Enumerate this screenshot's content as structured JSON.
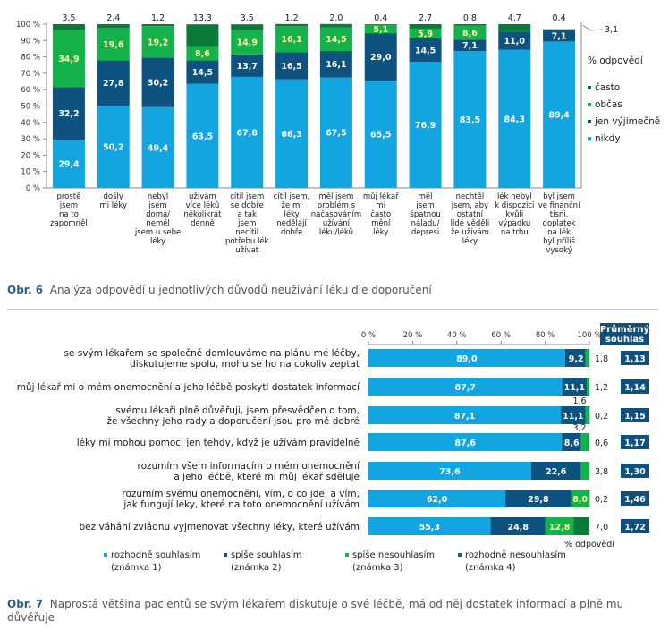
{
  "colors": {
    "very_light": "#12a5e0",
    "dark_blue": "#0e527f",
    "green": "#15b24b",
    "dark_green": "#0a7a3a",
    "axis": "#888888",
    "score_box": "#124f7a"
  },
  "figure6": {
    "caption_num": "Obr. 6",
    "caption": "Analýza odpovědí u jednotlivých důvodů neužívání léku dle doporučení",
    "unit_label": "% odpovědí",
    "extra_label": "3,1"
  },
  "figure7": {
    "caption_num": "Obr. 7",
    "caption": "Naprostá většina pacientů se svým lékařem diskutuje o své léčbě, má od něj dostatek informací a plně mu důvěřuje",
    "score_header": "Průměrný souhlas",
    "unit_label": "% odpovědí"
  },
  "chart_data": [
    {
      "type": "bar",
      "stacked": true,
      "orientation": "vertical",
      "yticks": [
        "0 %",
        "10 %",
        "20 %",
        "30 %",
        "40 %",
        "50 %",
        "60 %",
        "70 %",
        "80 %",
        "90 %",
        "100 %"
      ],
      "ylim": [
        0,
        100
      ],
      "categories": [
        [
          "prostě",
          "jsem",
          "na to",
          "zapomněl"
        ],
        [
          "došly",
          "mi léky"
        ],
        [
          "nebyl",
          "jsem",
          "doma/",
          "neměl",
          "jsem u sebe",
          "léky"
        ],
        [
          "užívám",
          "více léků",
          "několikrát",
          "denně"
        ],
        [
          "cítil jsem",
          "se dobře",
          "a tak",
          "jsem",
          "necítil",
          "potřebu lék",
          "užívat"
        ],
        [
          "cítil jsem,",
          "že mi",
          "léky",
          "nedělají",
          "dobře"
        ],
        [
          "měl jsem",
          "problém s",
          "načasováním",
          "užívání",
          "léku/léků"
        ],
        [
          "můj lékař",
          "mi",
          "často",
          "mění",
          "léky"
        ],
        [
          "měl",
          "jsem",
          "špatnou",
          "náladu/",
          "depresi"
        ],
        [
          "nechtěl",
          "jsem, aby",
          "ostatní",
          "lidé věděli",
          "že užívám",
          "léky"
        ],
        [
          "lék nebyl",
          "k dispozici",
          "kvůli",
          "výpadku",
          "na trhu"
        ],
        [
          "byl jsem",
          "ve finanční",
          "tísni,",
          "doplatek",
          "na lék",
          "byl příliš",
          "vysoký"
        ]
      ],
      "series": [
        {
          "name": "nikdy",
          "values": [
            29.4,
            50.2,
            49.4,
            63.5,
            67.8,
            66.3,
            67.5,
            65.5,
            76.9,
            83.5,
            84.3,
            89.4
          ],
          "labels": [
            "29,4",
            "50,2",
            "49,4",
            "63,5",
            "67,8",
            "66,3",
            "67,5",
            "65,5",
            "76,9",
            "83,5",
            "84,3",
            "89,4"
          ]
        },
        {
          "name": "jen výjimečně",
          "values": [
            32.2,
            27.8,
            30.2,
            14.5,
            13.7,
            16.5,
            16.1,
            29.0,
            14.5,
            7.1,
            11.0,
            7.1
          ],
          "labels": [
            "32,2",
            "27,8",
            "30,2",
            "14,5",
            "13,7",
            "16,5",
            "16,1",
            "29,0",
            "14,5",
            "7,1",
            "11,0",
            "7,1"
          ]
        },
        {
          "name": "občas",
          "values": [
            34.9,
            19.6,
            19.2,
            8.6,
            14.9,
            16.1,
            14.5,
            5.1,
            5.9,
            8.6,
            0.0,
            0.0
          ],
          "labels": [
            "34,9",
            "19,6",
            "19,2",
            "8,6",
            "14,9",
            "16,1",
            "14,5",
            "5,1",
            "5,9",
            "8,6",
            "",
            ""
          ]
        },
        {
          "name": "často",
          "values": [
            3.5,
            2.4,
            1.2,
            13.3,
            3.5,
            1.2,
            2.0,
            0.4,
            2.7,
            0.8,
            4.7,
            0.4
          ],
          "labels": [
            "3,5",
            "2,4",
            "1,2",
            "13,3",
            "3,5",
            "1,2",
            "2,0",
            "0,4",
            "2,7",
            "0,8",
            "4,7",
            "0,4"
          ]
        }
      ],
      "legend_order": [
        "často",
        "občas",
        "jen výjimečně",
        "nikdy"
      ],
      "legend": "right"
    },
    {
      "type": "bar",
      "stacked": true,
      "orientation": "horizontal",
      "xticks": [
        "0 %",
        "20 %",
        "40 %",
        "60 %",
        "80 %",
        "100 %"
      ],
      "xlim": [
        0,
        100
      ],
      "categories": [
        [
          "se svým lékařem se společně domlouváme na plánu mé léčby,",
          "diskutujeme spolu, mohu se ho na cokoliv zeptat"
        ],
        [
          "můj lékař mi o mém onemocnění a jeho léčbě poskytl dostatek informací"
        ],
        [
          "svému lékaři plně důvěřuji, jsem přesvědčen o tom,",
          "že všechny jeho rady a doporučení jsou pro mě dobré"
        ],
        [
          "léky mi mohou pomoci jen tehdy, když je užívám pravidelně"
        ],
        [
          "rozumím všem informacím o mém onemocnění",
          "a jeho léčbě, které mi můj lékař sděluje"
        ],
        [
          "rozumím svému onemocnění, vím, o co jde, a vím,",
          "jak fungují léky, které na toto onemocnění užívám"
        ],
        [
          "bez váhání zvládnu vyjmenovat všechny léky, které užívám"
        ]
      ],
      "series": [
        {
          "name": "rozhodně souhlasím (známka 1)",
          "values": [
            89.0,
            87.7,
            87.1,
            87.6,
            73.6,
            62.0,
            55.3
          ],
          "labels": [
            "89,0",
            "87,7",
            "87,1",
            "87,6",
            "73,6",
            "62,0",
            "55,3"
          ]
        },
        {
          "name": "spíše souhlasím (známka 2)",
          "values": [
            9.2,
            11.1,
            11.1,
            8.6,
            22.6,
            29.8,
            24.8
          ],
          "labels": [
            "9,2",
            "11,1",
            "11,1",
            "8,6",
            "22,6",
            "29,8",
            "24,8"
          ]
        },
        {
          "name": "spíše nesouhlasím (známka 3)",
          "values": [
            1.8,
            1.2,
            1.6,
            3.2,
            3.8,
            8.0,
            12.8
          ],
          "labels": [
            "1,8",
            "1,2",
            "1,6",
            "3,2",
            "3,8",
            "8,0",
            "12,8"
          ]
        },
        {
          "name": "rozhodně nesouhlasím (známka 4)",
          "values": [
            0.0,
            0.0,
            0.2,
            0.6,
            0.0,
            0.2,
            7.0
          ],
          "labels": [
            "",
            "",
            "0,2",
            "0,6",
            "",
            "0,2",
            "7,0"
          ]
        }
      ],
      "legend_entries": [
        [
          "rozhodně souhlasím",
          "(známka 1)"
        ],
        [
          "spíše souhlasím",
          "(známka 2)"
        ],
        [
          "spíše nesouhlasím",
          "(známka 3)"
        ],
        [
          "rozhodně nesouhlasím",
          "(známka 4)"
        ]
      ],
      "average_agreement": [
        "1,13",
        "1,14",
        "1,15",
        "1,17",
        "1,30",
        "1,46",
        "1,72"
      ],
      "legend": "bottom"
    }
  ]
}
